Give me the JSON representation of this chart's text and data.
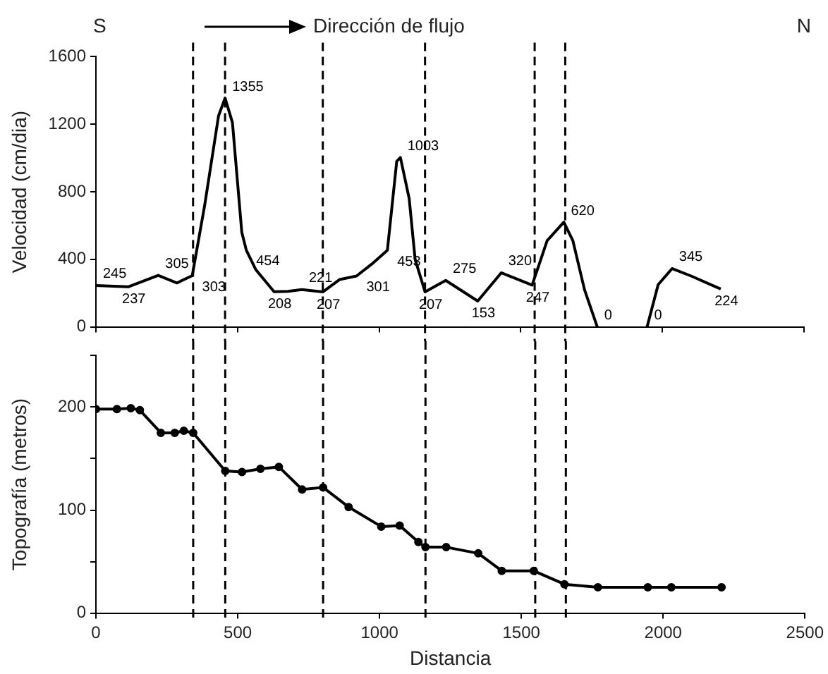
{
  "chart_data": [
    {
      "type": "line",
      "annotations": [
        "S",
        "Dirección de flujo",
        "N"
      ],
      "ylabel": "Velocidad (cm/dia)",
      "color": "#000000",
      "x": [
        0,
        114,
        220,
        286,
        340,
        384,
        433,
        456,
        482,
        515,
        531,
        564,
        629,
        678,
        727,
        801,
        860,
        920,
        980,
        1029,
        1062,
        1075,
        1106,
        1127,
        1162,
        1235,
        1348,
        1431,
        1540,
        1593,
        1652,
        1684,
        1725,
        1770,
        1860,
        1946,
        1985,
        2034,
        2103,
        2206
      ],
      "values": [
        245,
        237,
        305,
        260,
        303,
        720,
        1250,
        1355,
        1210,
        560,
        454,
        340,
        208,
        210,
        221,
        207,
        280,
        301,
        380,
        453,
        980,
        1003,
        760,
        400,
        207,
        275,
        153,
        320,
        247,
        510,
        620,
        510,
        220,
        0,
        null,
        0,
        250,
        345,
        300,
        224
      ],
      "value_labels": [
        "245",
        "237",
        "305",
        null,
        "303",
        null,
        null,
        "1355",
        null,
        null,
        "454",
        null,
        "208",
        null,
        "221",
        "207",
        null,
        "301",
        null,
        "453",
        null,
        "1003",
        null,
        null,
        "207",
        "275",
        "153",
        "320",
        "247",
        null,
        "620",
        null,
        null,
        "0",
        null,
        "0",
        null,
        "345",
        null,
        "224"
      ],
      "xlim": [
        0,
        2500
      ],
      "xticks": [
        0,
        500,
        1000,
        1500,
        2000,
        2500
      ],
      "ylim": [
        0,
        1600
      ],
      "yticks": [
        0,
        400,
        800,
        1200,
        1600
      ],
      "tick_labels": "y",
      "grid": false,
      "ref_lines": [
        {
          "axis": "x",
          "value": 343,
          "line_style": "dashed"
        },
        {
          "axis": "x",
          "value": 456,
          "line_style": "dashed"
        },
        {
          "axis": "x",
          "value": 801,
          "line_style": "dashed"
        },
        {
          "axis": "x",
          "value": 1162,
          "line_style": "dashed"
        },
        {
          "axis": "x",
          "value": 1549,
          "line_style": "dashed"
        },
        {
          "axis": "x",
          "value": 1657,
          "line_style": "dashed"
        }
      ]
    },
    {
      "type": "line",
      "xlabel": "Distancia",
      "ylabel": "Topografía (metros)",
      "color": "#000000",
      "marker": "circle",
      "x": [
        0,
        74,
        123,
        155,
        229,
        278,
        310,
        343,
        456,
        515,
        580,
        645,
        727,
        801,
        891,
        1006,
        1071,
        1137,
        1162,
        1235,
        1348,
        1431,
        1544,
        1652,
        1770,
        1946,
        2029,
        2206
      ],
      "values": [
        198,
        198,
        199,
        197,
        175,
        175,
        177,
        175,
        138,
        137,
        140,
        142,
        120,
        122,
        103,
        84,
        85,
        69,
        64,
        64,
        58,
        41,
        41,
        28,
        25,
        25,
        25,
        25
      ],
      "xlim": [
        0,
        2500
      ],
      "xticks": [
        0,
        500,
        1000,
        1500,
        2000,
        2500
      ],
      "ylim": [
        0,
        250
      ],
      "yticks": [
        0,
        {
          "value": 50,
          "label": null
        },
        100,
        {
          "value": 150,
          "label": null
        },
        200,
        {
          "value": 250,
          "label": null
        }
      ],
      "grid": false,
      "ref_lines": [
        {
          "axis": "x",
          "value": 343,
          "line_style": "dashed"
        },
        {
          "axis": "x",
          "value": 456,
          "line_style": "dashed"
        },
        {
          "axis": "x",
          "value": 801,
          "line_style": "dashed"
        },
        {
          "axis": "x",
          "value": 1162,
          "line_style": "dashed"
        },
        {
          "axis": "x",
          "value": 1549,
          "line_style": "dashed"
        },
        {
          "axis": "x",
          "value": 1657,
          "line_style": "dashed"
        }
      ]
    }
  ]
}
